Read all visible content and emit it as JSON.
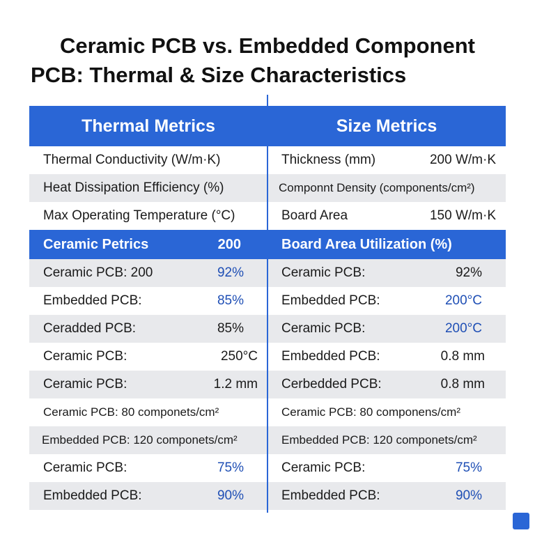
{
  "title": {
    "lines": [
      "Ceramic PCB vs. Embedded Component",
      "PCB: Thermal & Size Characteristics"
    ]
  },
  "table": {
    "columns": [
      {
        "header": "Thermal Metrics",
        "metrics": [
          [
            "Thermal Conductivity (W/m·K)"
          ],
          [
            "Heat Dissipation Efficiency (%)"
          ],
          [
            "Max Operating Temperature (°C)"
          ]
        ],
        "subheader": [
          "Ceramic Petrics",
          "200"
        ],
        "rows": [
          [
            "Ceramic PCB: 200",
            "92%"
          ],
          [
            "Embedded PCB:",
            "85%"
          ],
          [
            "Ceradded PCB:",
            "85%"
          ],
          [
            "Ceramic PCB:",
            "250°C"
          ],
          [
            "Ceramic PCB:",
            "1.2 mm"
          ],
          [
            "Ceramic PCB: 80 componets/cm²"
          ],
          [
            "Embedded PCB: 120 componets/cm²"
          ],
          [
            "Ceramic PCB:",
            "75%"
          ],
          [
            "Embedded PCB:",
            "90%"
          ]
        ]
      },
      {
        "header": "Size Metrics",
        "metrics": [
          [
            "Thickness (mm)",
            "200 W/m·K"
          ],
          [
            "Componnt Density (components/cm²)"
          ],
          [
            "Board Area",
            "150 W/m·K"
          ]
        ],
        "subheader": [
          "Board Area Utilization (%)"
        ],
        "rows": [
          [
            "Ceramic PCB:",
            "92%"
          ],
          [
            "Embedded PCB:",
            "200°C"
          ],
          [
            "Ceramic PCB:",
            "200°C"
          ],
          [
            "Embedded PCB:",
            "0.8 mm"
          ],
          [
            "Cerbedded PCB:",
            "0.8 mm"
          ],
          [
            "Ceramic PCB: 80 componens/cm²"
          ],
          [
            "Embedded PCB: 120 componets/cm²"
          ],
          [
            "Ceramic PCB:",
            "75%"
          ],
          [
            "Embedded PCB:",
            "90%"
          ]
        ]
      }
    ]
  }
}
